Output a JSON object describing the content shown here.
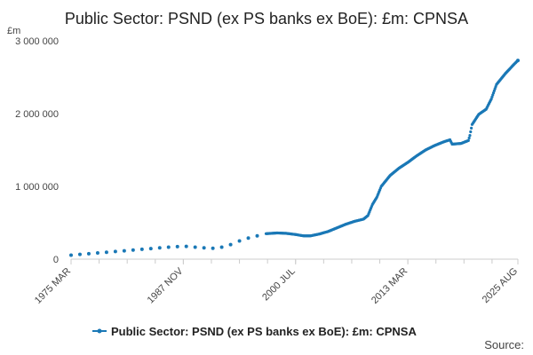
{
  "chart_data": {
    "type": "line",
    "title": "Public Sector: PSND (ex PS banks ex BoE): £m: CPNSA",
    "unit_label": "£m",
    "ylim": [
      0,
      3000000
    ],
    "y_ticks": [
      0,
      1000000,
      2000000,
      3000000
    ],
    "y_tick_labels": [
      "0",
      "1 000 000",
      "2 000 000",
      "3 000 000"
    ],
    "x_range": [
      "1975-03",
      "2025-08"
    ],
    "x_ticks": [
      "1975-03",
      "1987-11",
      "2000-07",
      "2013-03",
      "2025-08"
    ],
    "x_tick_labels": [
      "1975 MAR",
      "1987 NOV",
      "2000 JUL",
      "2013 MAR",
      "2025 AUG"
    ],
    "color": "#1a78b6",
    "legend": "bottom",
    "grid": false,
    "series": [
      {
        "name": "Public Sector: PSND (ex PS banks ex BoE): £m: CPNSA",
        "annual": [
          [
            "1975-03",
            55000
          ],
          [
            "1976-03",
            65000
          ],
          [
            "1977-03",
            75000
          ],
          [
            "1978-03",
            85000
          ],
          [
            "1979-03",
            95000
          ],
          [
            "1980-03",
            105000
          ],
          [
            "1981-03",
            115000
          ],
          [
            "1982-03",
            125000
          ],
          [
            "1983-03",
            135000
          ],
          [
            "1984-03",
            145000
          ],
          [
            "1985-03",
            155000
          ],
          [
            "1986-03",
            165000
          ],
          [
            "1987-03",
            172000
          ],
          [
            "1988-03",
            175000
          ],
          [
            "1989-03",
            165000
          ],
          [
            "1990-03",
            155000
          ],
          [
            "1991-03",
            150000
          ],
          [
            "1992-03",
            165000
          ],
          [
            "1993-03",
            200000
          ],
          [
            "1994-03",
            250000
          ],
          [
            "1995-03",
            290000
          ],
          [
            "1996-03",
            320000
          ]
        ],
        "monthly_anchors": [
          [
            "1997-03",
            350000
          ],
          [
            "1998-06",
            360000
          ],
          [
            "1999-06",
            355000
          ],
          [
            "2000-06",
            340000
          ],
          [
            "2001-06",
            320000
          ],
          [
            "2002-03",
            320000
          ],
          [
            "2003-03",
            345000
          ],
          [
            "2004-03",
            380000
          ],
          [
            "2005-03",
            430000
          ],
          [
            "2006-03",
            480000
          ],
          [
            "2007-03",
            520000
          ],
          [
            "2008-03",
            550000
          ],
          [
            "2008-09",
            600000
          ],
          [
            "2009-03",
            750000
          ],
          [
            "2009-09",
            850000
          ],
          [
            "2010-03",
            1000000
          ],
          [
            "2011-03",
            1150000
          ],
          [
            "2012-03",
            1250000
          ],
          [
            "2013-03",
            1330000
          ],
          [
            "2014-03",
            1420000
          ],
          [
            "2015-03",
            1500000
          ],
          [
            "2016-03",
            1560000
          ],
          [
            "2017-03",
            1610000
          ],
          [
            "2017-12",
            1640000
          ],
          [
            "2018-03",
            1580000
          ],
          [
            "2019-03",
            1590000
          ],
          [
            "2020-01",
            1630000
          ],
          [
            "2020-03",
            1700000
          ],
          [
            "2020-06",
            1850000
          ],
          [
            "2021-03",
            1990000
          ],
          [
            "2022-01",
            2060000
          ],
          [
            "2022-08",
            2200000
          ],
          [
            "2023-03",
            2400000
          ],
          [
            "2024-03",
            2550000
          ],
          [
            "2025-03",
            2680000
          ],
          [
            "2025-08",
            2730000
          ]
        ]
      }
    ]
  },
  "source_label": "Source:"
}
